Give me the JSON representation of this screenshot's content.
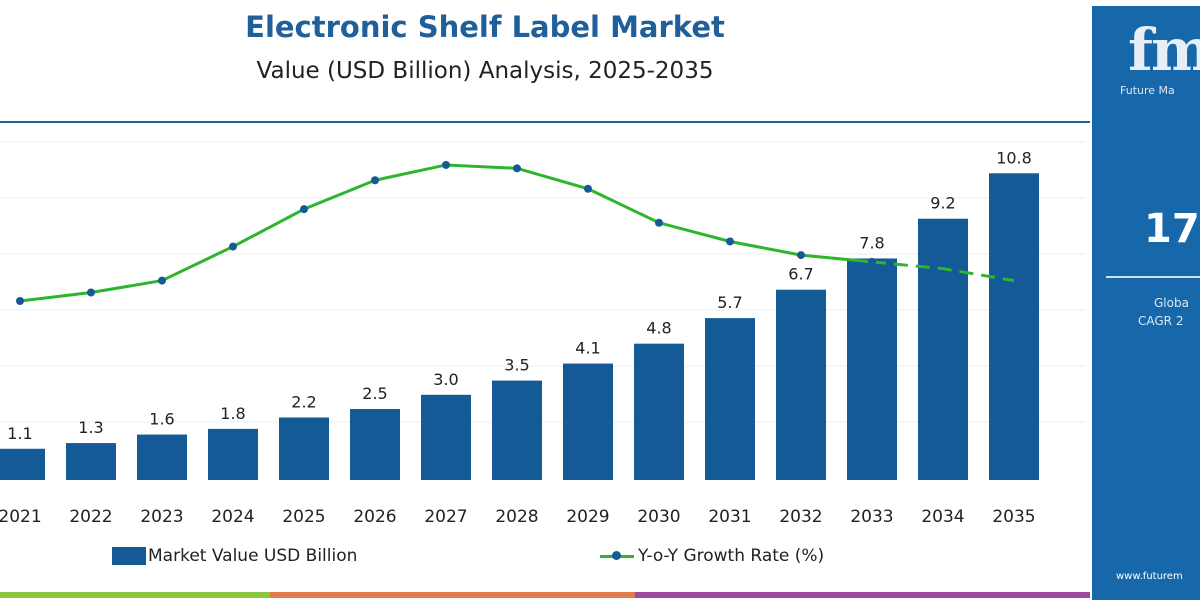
{
  "chart_data": {
    "type": "bar+line",
    "title": "Electronic Shelf Label Market",
    "subtitle": "Value (USD Billion) Analysis, 2025-2035",
    "categories": [
      "2021",
      "2022",
      "2023",
      "2024",
      "2025",
      "2026",
      "2027",
      "2028",
      "2029",
      "2030",
      "2031",
      "2032",
      "2033",
      "2034",
      "2035"
    ],
    "series": [
      {
        "name": "Market Value USD Billion",
        "type": "bar",
        "color": "#135a96",
        "values": [
          1.1,
          1.3,
          1.6,
          1.8,
          2.2,
          2.5,
          3.0,
          3.5,
          4.1,
          4.8,
          5.7,
          6.7,
          7.8,
          9.2,
          10.8
        ]
      },
      {
        "name": "Y-o-Y Growth Rate (%)",
        "type": "line",
        "color": "#2eb52e",
        "marker_color": "#135a96",
        "values": [
          12.0,
          12.5,
          13.2,
          15.2,
          17.4,
          19.1,
          20.0,
          19.8,
          18.6,
          16.6,
          15.5,
          14.7,
          14.3,
          13.9,
          13.2
        ]
      }
    ],
    "grid": true,
    "legend": "bottom"
  },
  "panel": {
    "logo": "fmi",
    "brand": "Future Ma",
    "cagr": "17.",
    "label1": "Globa",
    "label2": "CAGR 2",
    "url": "www.futurem",
    "color": "#1767ab"
  },
  "stripe_colors": [
    "#8cc63f",
    "#e07b4a",
    "#9b4a9e"
  ]
}
